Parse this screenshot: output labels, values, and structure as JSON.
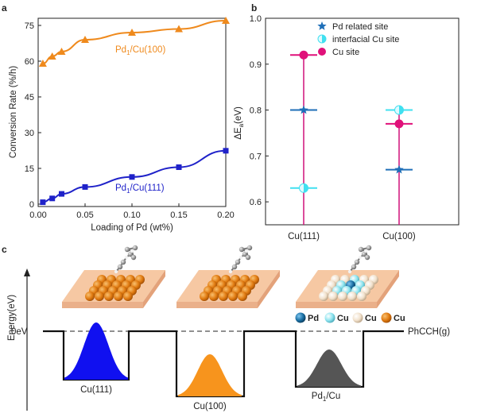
{
  "panels": {
    "a": "a",
    "b": "b",
    "c": "c"
  },
  "chart_data": [
    {
      "type": "line",
      "panel": "a",
      "xlabel": "Loading of Pd (wt%)",
      "ylabel": "Conversion Rate (%/h)",
      "xlim": [
        0,
        0.2
      ],
      "ylim": [
        -1,
        78
      ],
      "xticks": [
        "0.00",
        "0.05",
        "0.10",
        "0.15",
        "0.20"
      ],
      "yticks": [
        "0",
        "15",
        "30",
        "45",
        "60",
        "75"
      ],
      "series": [
        {
          "name": "Pd1/Cu(100)",
          "label_main": "Pd",
          "label_sub": "1",
          "label_rest": "/Cu(100)",
          "color": "#ef8a1d",
          "marker": "triangle",
          "x": [
            0.005,
            0.015,
            0.025,
            0.05,
            0.1,
            0.15,
            0.2
          ],
          "y": [
            59,
            62,
            64,
            69,
            72,
            73.5,
            77
          ]
        },
        {
          "name": "Pd1/Cu(111)",
          "label_main": "Pd",
          "label_sub": "1",
          "label_rest": "/Cu(111)",
          "color": "#1f22c9",
          "marker": "square",
          "x": [
            0.005,
            0.015,
            0.025,
            0.05,
            0.1,
            0.15,
            0.2
          ],
          "y": [
            0.8,
            2.4,
            4.3,
            7.2,
            11.4,
            15.5,
            22.4
          ]
        }
      ]
    },
    {
      "type": "scatter",
      "panel": "b",
      "ylabel_main": "ΔE",
      "ylabel_sub": "a",
      "ylabel_rest": "(eV)",
      "ylim": [
        0.55,
        1.0
      ],
      "yticks": [
        "0.6",
        "0.7",
        "0.8",
        "0.9",
        "1.0"
      ],
      "categories": [
        "Cu(111)",
        "Cu(100)"
      ],
      "legend_position": "top-right",
      "series": [
        {
          "name": "Pd related site",
          "color": "#1f6fb8",
          "marker": "star",
          "values": [
            0.8,
            0.67
          ]
        },
        {
          "name": "interfacial Cu site",
          "color": "#40e0f0",
          "marker": "half-circle",
          "values": [
            0.63,
            0.8
          ]
        },
        {
          "name": "Cu site",
          "color": "#e0117a",
          "marker": "circle",
          "values": [
            0.92,
            0.77
          ]
        }
      ]
    },
    {
      "type": "diagram",
      "panel": "c",
      "ylabel": "Energy(eV)",
      "zero_label": "0eV",
      "end_label": "PhCCH(g)",
      "wells": [
        {
          "label": "Cu(111)",
          "color": "#1010f0",
          "depth": 1.0
        },
        {
          "label": "Cu(100)",
          "color": "#f7941d",
          "depth": 1.3
        },
        {
          "label_main": "Pd",
          "label_sub": "1",
          "label_rest": "/Cu",
          "color": "#555555",
          "depth": 1.15
        }
      ],
      "atom_legend": [
        {
          "label": "Pd",
          "color": "#1a6fa3"
        },
        {
          "label": "Cu",
          "color": "#8ee4ef"
        },
        {
          "label": "Cu",
          "color": "#f1e1cc"
        },
        {
          "label": "Cu",
          "color": "#e07a10"
        }
      ]
    }
  ]
}
